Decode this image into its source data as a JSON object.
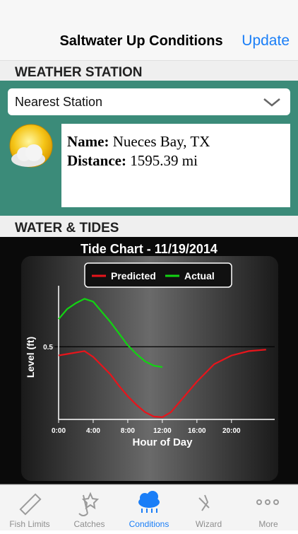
{
  "nav": {
    "title": "Saltwater Up Conditions",
    "action": "Update"
  },
  "weather_station": {
    "heading": "WEATHER STATION",
    "dropdown": "Nearest Station",
    "name_label": "Name:",
    "name": "Nueces Bay, TX",
    "distance_label": "Distance:",
    "distance": "1595.39 mi"
  },
  "water_tides": {
    "heading": "WATER & TIDES"
  },
  "chart_data": {
    "type": "line",
    "title": "Tide Chart - 11/19/2014",
    "x_label": "Hour of Day",
    "y_label": "Level (ft)",
    "x": [
      0,
      1,
      2,
      3,
      4,
      5,
      6,
      7,
      8,
      9,
      10,
      11,
      12,
      13,
      14,
      16,
      18,
      20,
      22,
      24
    ],
    "series": [
      {
        "name": "Predicted",
        "color": "#e8141b",
        "values": [
          0.44,
          0.45,
          0.46,
          0.47,
          0.43,
          0.37,
          0.31,
          0.23,
          0.16,
          0.1,
          0.05,
          0.02,
          0.015,
          0.05,
          0.12,
          0.26,
          0.38,
          0.44,
          0.47,
          0.48
        ]
      },
      {
        "name": "Actual",
        "color": "#12d412",
        "values": [
          0.69,
          0.76,
          0.8,
          0.83,
          0.81,
          0.74,
          0.67,
          0.59,
          0.51,
          0.45,
          0.4,
          0.37,
          0.36,
          null,
          null,
          null,
          null,
          null,
          null,
          null
        ]
      }
    ],
    "xlim": [
      0,
      25
    ],
    "ylim": [
      0,
      0.9
    ],
    "xticks": [
      {
        "value": 0,
        "label": "0:00"
      },
      {
        "value": 4,
        "label": "4:00"
      },
      {
        "value": 8,
        "label": "8:00"
      },
      {
        "value": 12,
        "label": "12:00"
      },
      {
        "value": 16,
        "label": "16:00"
      },
      {
        "value": 20,
        "label": "20:00"
      }
    ],
    "yticks": [
      0.5
    ],
    "grid": true,
    "legend": "top"
  },
  "tabs": [
    {
      "label": "Fish Limits"
    },
    {
      "label": "Catches"
    },
    {
      "label": "Conditions"
    },
    {
      "label": "Wizard"
    },
    {
      "label": "More"
    }
  ]
}
